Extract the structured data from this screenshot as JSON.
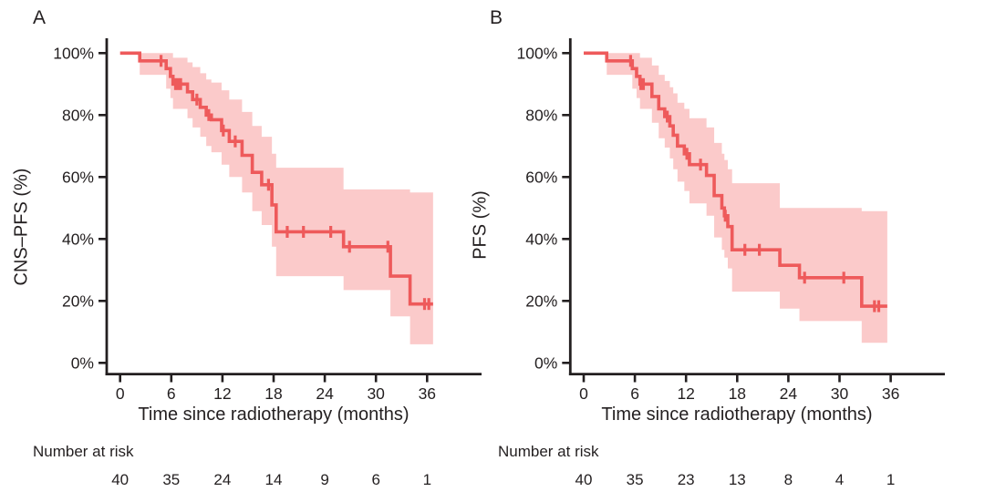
{
  "page": {
    "background": "#ffffff"
  },
  "chart_data": [
    {
      "type": "line",
      "subtype": "kaplan-meier-step",
      "panel_label": "A",
      "ylabel": "CNS–PFS (%)",
      "xlabel": "Time since radiotherapy (months)",
      "number_at_risk_label": "Number at risk",
      "x_ticks": [
        0,
        6,
        12,
        18,
        24,
        30,
        36
      ],
      "y_tick_values": [
        0,
        20,
        40,
        60,
        80,
        100
      ],
      "y_tick_labels": [
        "0%",
        "20%",
        "40%",
        "60%",
        "80%",
        "100%"
      ],
      "xlim": [
        0,
        38
      ],
      "ylim": [
        0,
        100
      ],
      "grid": false,
      "legend": null,
      "curve_color": "#ee5a5b",
      "band_color": "#fbcaca",
      "axis_color": "#231f20",
      "steps": [
        {
          "t": 0,
          "v": 100,
          "lo": 100,
          "hi": 100
        },
        {
          "t": 2.3,
          "v": 97.5,
          "lo": 93,
          "hi": 100
        },
        {
          "t": 5.4,
          "v": 95,
          "lo": 88.5,
          "hi": 100
        },
        {
          "t": 5.9,
          "v": 92.5,
          "lo": 85.5,
          "hi": 100
        },
        {
          "t": 6.2,
          "v": 90,
          "lo": 82,
          "hi": 98.5
        },
        {
          "t": 7.9,
          "v": 87.5,
          "lo": 79,
          "hi": 97
        },
        {
          "t": 8.5,
          "v": 85,
          "lo": 76,
          "hi": 95.5
        },
        {
          "t": 9.4,
          "v": 82.5,
          "lo": 73,
          "hi": 93.5
        },
        {
          "t": 10.1,
          "v": 80,
          "lo": 70,
          "hi": 91.5
        },
        {
          "t": 10.7,
          "v": 78.5,
          "lo": 68,
          "hi": 90.5
        },
        {
          "t": 11.9,
          "v": 75,
          "lo": 64,
          "hi": 88
        },
        {
          "t": 12.8,
          "v": 71.5,
          "lo": 60,
          "hi": 85
        },
        {
          "t": 14.3,
          "v": 67,
          "lo": 55,
          "hi": 81
        },
        {
          "t": 15.5,
          "v": 61.5,
          "lo": 49,
          "hi": 76.5
        },
        {
          "t": 16.6,
          "v": 57.5,
          "lo": 44.5,
          "hi": 73
        },
        {
          "t": 17.8,
          "v": 51,
          "lo": 37.5,
          "hi": 67.5
        },
        {
          "t": 18.3,
          "v": 42.3,
          "lo": 28,
          "hi": 63
        },
        {
          "t": 26.2,
          "v": 37.5,
          "lo": 23.5,
          "hi": 56
        },
        {
          "t": 31.7,
          "v": 28,
          "lo": 15,
          "hi": 56
        },
        {
          "t": 34.0,
          "v": 19,
          "lo": 6,
          "hi": 55
        }
      ],
      "censor_times": [
        4.8,
        6.5,
        6.8,
        7.1,
        9.0,
        10.4,
        12.1,
        13.5,
        17.4,
        19.6,
        21.5,
        24.7,
        26.9,
        31.4,
        35.7,
        36.2
      ],
      "end_time": 36.7,
      "number_at_risk": {
        "times": [
          0,
          6,
          12,
          18,
          24,
          30,
          36
        ],
        "counts": [
          40,
          35,
          24,
          14,
          9,
          6,
          1
        ]
      }
    },
    {
      "type": "line",
      "subtype": "kaplan-meier-step",
      "panel_label": "B",
      "ylabel": "PFS (%)",
      "xlabel": "Time since radiotherapy (months)",
      "number_at_risk_label": "Number at risk",
      "x_ticks": [
        0,
        6,
        12,
        18,
        24,
        30,
        36
      ],
      "y_tick_values": [
        0,
        20,
        40,
        60,
        80,
        100
      ],
      "y_tick_labels": [
        "0%",
        "20%",
        "40%",
        "60%",
        "80%",
        "100%"
      ],
      "xlim": [
        0,
        38
      ],
      "ylim": [
        0,
        100
      ],
      "grid": false,
      "legend": null,
      "curve_color": "#ee5a5b",
      "band_color": "#fbcaca",
      "axis_color": "#231f20",
      "steps": [
        {
          "t": 0,
          "v": 100,
          "lo": 100,
          "hi": 100
        },
        {
          "t": 2.7,
          "v": 97.5,
          "lo": 93,
          "hi": 100
        },
        {
          "t": 5.7,
          "v": 95,
          "lo": 88.5,
          "hi": 100
        },
        {
          "t": 6.2,
          "v": 92.5,
          "lo": 85.5,
          "hi": 100
        },
        {
          "t": 6.6,
          "v": 90,
          "lo": 82,
          "hi": 98.5
        },
        {
          "t": 8.0,
          "v": 86,
          "lo": 77.5,
          "hi": 96
        },
        {
          "t": 8.8,
          "v": 82,
          "lo": 72.5,
          "hi": 93
        },
        {
          "t": 9.5,
          "v": 79.5,
          "lo": 69.5,
          "hi": 91
        },
        {
          "t": 10.1,
          "v": 76.5,
          "lo": 66,
          "hi": 89
        },
        {
          "t": 10.5,
          "v": 73.5,
          "lo": 62.5,
          "hi": 87
        },
        {
          "t": 11.0,
          "v": 70,
          "lo": 58.5,
          "hi": 84
        },
        {
          "t": 11.8,
          "v": 67.5,
          "lo": 55.5,
          "hi": 82
        },
        {
          "t": 12.4,
          "v": 64,
          "lo": 51.5,
          "hi": 79
        },
        {
          "t": 14.4,
          "v": 60.5,
          "lo": 47.5,
          "hi": 76
        },
        {
          "t": 15.3,
          "v": 54,
          "lo": 40.5,
          "hi": 71
        },
        {
          "t": 16.2,
          "v": 50,
          "lo": 36.5,
          "hi": 67.5
        },
        {
          "t": 16.5,
          "v": 47.5,
          "lo": 34,
          "hi": 65.5
        },
        {
          "t": 16.9,
          "v": 44,
          "lo": 30.5,
          "hi": 62.5
        },
        {
          "t": 17.4,
          "v": 36.5,
          "lo": 23,
          "hi": 58
        },
        {
          "t": 23.0,
          "v": 31.5,
          "lo": 17.5,
          "hi": 50
        },
        {
          "t": 25.3,
          "v": 27.5,
          "lo": 13.5,
          "hi": 50
        },
        {
          "t": 32.6,
          "v": 18.3,
          "lo": 6.5,
          "hi": 49
        }
      ],
      "censor_times": [
        5.5,
        6.7,
        7.0,
        9.8,
        12.1,
        13.7,
        16.6,
        18.9,
        20.6,
        25.9,
        30.5,
        34.1,
        34.6
      ],
      "end_time": 35.6,
      "number_at_risk": {
        "times": [
          0,
          6,
          12,
          18,
          24,
          30,
          36
        ],
        "counts": [
          40,
          35,
          23,
          13,
          8,
          4,
          1
        ]
      }
    }
  ]
}
